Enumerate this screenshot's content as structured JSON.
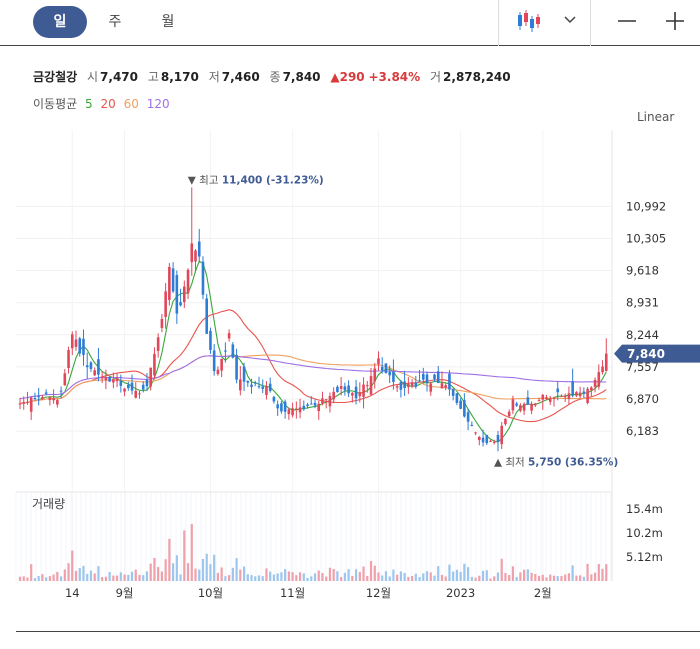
{
  "tabs": [
    {
      "label": "일",
      "active": true
    },
    {
      "label": "주",
      "active": false
    },
    {
      "label": "월",
      "active": false
    }
  ],
  "quote": {
    "name": "금강철강",
    "open_label": "시",
    "open": "7,470",
    "high_label": "고",
    "high": "8,170",
    "low_label": "저",
    "low": "7,460",
    "close_label": "종",
    "close": "7,840",
    "change": "▲290",
    "change_pct": "+3.84%",
    "volume_label": "거",
    "volume": "2,878,240"
  },
  "moving_average": {
    "label": "이동평균",
    "periods": [
      {
        "label": "5",
        "color": "#3aa83a"
      },
      {
        "label": "20",
        "color": "#e8554e"
      },
      {
        "label": "60",
        "color": "#f0a060"
      },
      {
        "label": "120",
        "color": "#a070e8"
      }
    ]
  },
  "scale_mode": "Linear",
  "colors": {
    "up": "#e0475a",
    "down": "#2d7cd6",
    "accent": "#3f5b93",
    "current": "#3f5b93"
  },
  "chart_data": {
    "type": "candlestick",
    "y_ticks": [
      "10,992",
      "10,305",
      "9,618",
      "8,931",
      "8,244",
      "7,557",
      "6,870",
      "6,183"
    ],
    "y_tick_values": [
      10992,
      10305,
      9618,
      8931,
      8244,
      7557,
      6870,
      6183
    ],
    "ylim": [
      5350,
      12200
    ],
    "current_price": "7,840",
    "current_value": 7840,
    "annotations": {
      "high": {
        "label": "▼ 최고",
        "value_text": "11,400 (-31.23%)",
        "value": 11400,
        "index": 46
      },
      "low": {
        "label": "▲ 최저",
        "value_text": "5,750 (36.35%)",
        "value": 5750,
        "index": 128
      }
    },
    "x_labels": [
      {
        "label": "14",
        "index": 14
      },
      {
        "label": "9월",
        "index": 28
      },
      {
        "label": "10월",
        "index": 51
      },
      {
        "label": "11월",
        "index": 73
      },
      {
        "label": "12월",
        "index": 96
      },
      {
        "label": "2023",
        "index": 118
      },
      {
        "label": "2월",
        "index": 140
      }
    ],
    "volume": {
      "label": "거래량",
      "y_ticks": [
        "15.4m",
        "10.2m",
        "5.12m"
      ],
      "y_tick_values": [
        15400000,
        10200000,
        5120000
      ],
      "ylim": [
        0,
        19000000
      ]
    },
    "anchors": [
      [
        0,
        6760
      ],
      [
        6,
        6950
      ],
      [
        10,
        6800
      ],
      [
        12,
        7400
      ],
      [
        14,
        8300
      ],
      [
        16,
        7900
      ],
      [
        18,
        7600
      ],
      [
        22,
        7350
      ],
      [
        26,
        7250
      ],
      [
        30,
        7000
      ],
      [
        34,
        7100
      ],
      [
        36,
        7900
      ],
      [
        38,
        8500
      ],
      [
        40,
        9700
      ],
      [
        42,
        8700
      ],
      [
        44,
        9200
      ],
      [
        46,
        10150
      ],
      [
        48,
        9900
      ],
      [
        50,
        8300
      ],
      [
        52,
        7400
      ],
      [
        54,
        7700
      ],
      [
        56,
        8200
      ],
      [
        58,
        7300
      ],
      [
        62,
        7200
      ],
      [
        66,
        7100
      ],
      [
        70,
        6600
      ],
      [
        74,
        6650
      ],
      [
        78,
        6750
      ],
      [
        82,
        6850
      ],
      [
        86,
        7100
      ],
      [
        90,
        6950
      ],
      [
        94,
        7300
      ],
      [
        96,
        7700
      ],
      [
        98,
        7400
      ],
      [
        102,
        7050
      ],
      [
        106,
        7200
      ],
      [
        110,
        7250
      ],
      [
        114,
        7150
      ],
      [
        118,
        6700
      ],
      [
        121,
        6250
      ],
      [
        124,
        6000
      ],
      [
        127,
        5950
      ],
      [
        130,
        6500
      ],
      [
        132,
        6800
      ],
      [
        136,
        6750
      ],
      [
        140,
        6900
      ],
      [
        144,
        6950
      ],
      [
        148,
        7000
      ],
      [
        152,
        7050
      ],
      [
        156,
        7500
      ],
      [
        157,
        7840
      ]
    ]
  }
}
